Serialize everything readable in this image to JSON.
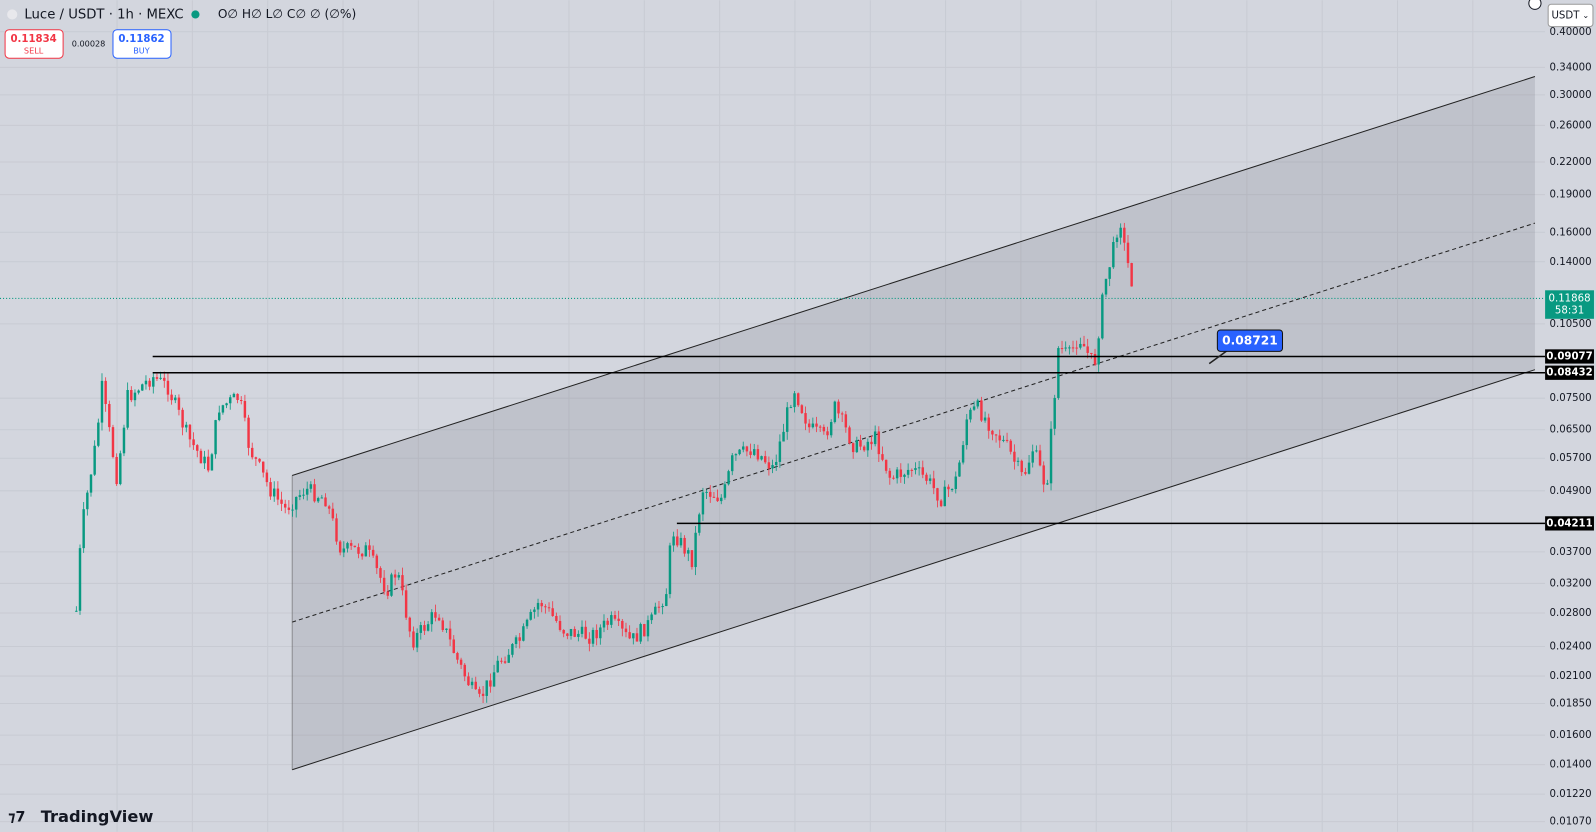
{
  "header": {
    "symbol": "Luce / USDT · 1h · MEXC",
    "ohlc": "O∅ H∅ L∅ C∅ ∅ (∅%)",
    "sell": {
      "price": "0.11834",
      "label": "SELL"
    },
    "spread": "0.00028",
    "buy": {
      "price": "0.11862",
      "label": "BUY"
    }
  },
  "currency": "USDT",
  "price_axis": {
    "ticks": [
      "0.40000",
      "0.34000",
      "0.30000",
      "0.26000",
      "0.22000",
      "0.19000",
      "0.16000",
      "0.14000",
      "0.10500",
      "0.07500",
      "0.06500",
      "0.05700",
      "0.04900",
      "0.03700",
      "0.03200",
      "0.02800",
      "0.02400",
      "0.02100",
      "0.01850",
      "0.01600",
      "0.01400",
      "0.01220",
      "0.01070"
    ],
    "last_price": "0.11868",
    "countdown": "58:31",
    "levels": [
      "0.09077",
      "0.08432",
      "0.04211"
    ]
  },
  "callout": "0.08721",
  "logo": "TradingView"
}
